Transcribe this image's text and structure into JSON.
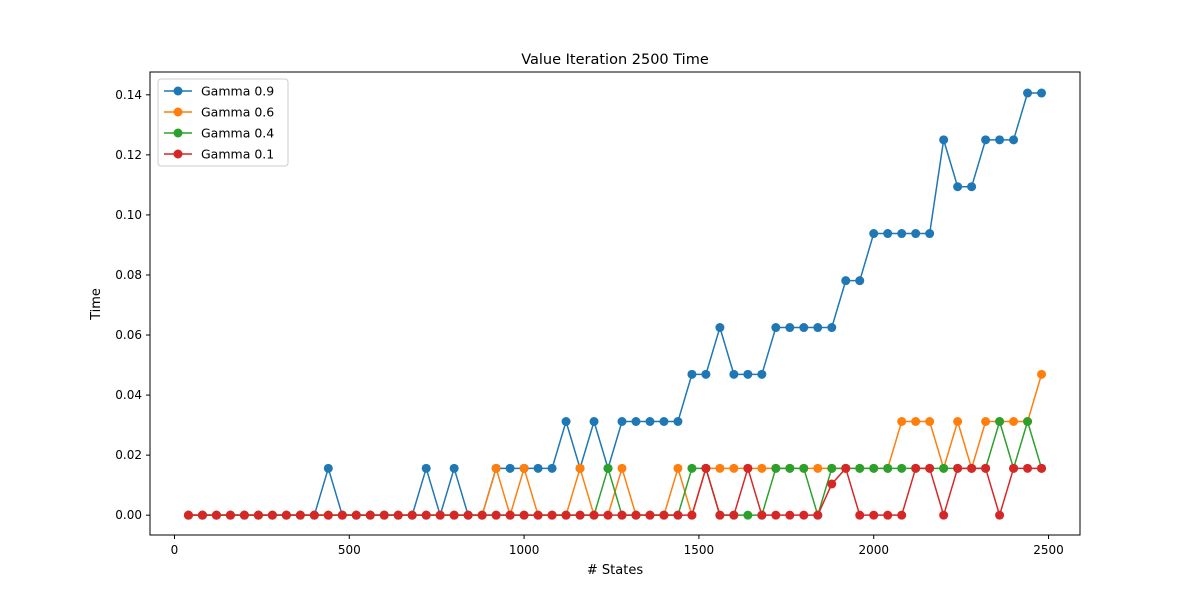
{
  "chart_data": {
    "type": "line",
    "title": "Value Iteration 2500  Time",
    "xlabel": "# States",
    "ylabel": "Time",
    "xlim": [
      -70,
      2590
    ],
    "ylim": [
      -0.0066,
      0.1476
    ],
    "x_ticks": [
      0,
      500,
      1000,
      1500,
      2000,
      2500
    ],
    "x_tick_labels": [
      "0",
      "500",
      "1000",
      "1500",
      "2000",
      "2500"
    ],
    "y_ticks": [
      0.0,
      0.02,
      0.04,
      0.06,
      0.08,
      0.1,
      0.12,
      0.14
    ],
    "y_tick_labels": [
      "0.00",
      "0.02",
      "0.04",
      "0.06",
      "0.08",
      "0.10",
      "0.12",
      "0.14"
    ],
    "grid": false,
    "legend_position": "upper-left",
    "x": [
      40,
      80,
      120,
      160,
      200,
      240,
      280,
      320,
      360,
      400,
      440,
      480,
      520,
      560,
      600,
      640,
      680,
      720,
      760,
      800,
      840,
      880,
      920,
      960,
      1000,
      1040,
      1080,
      1120,
      1160,
      1200,
      1240,
      1280,
      1320,
      1360,
      1400,
      1440,
      1480,
      1520,
      1560,
      1600,
      1640,
      1680,
      1720,
      1760,
      1800,
      1840,
      1880,
      1920,
      1960,
      2000,
      2040,
      2080,
      2120,
      2160,
      2200,
      2240,
      2280,
      2320,
      2360,
      2400,
      2440,
      2480
    ],
    "series": [
      {
        "name": "Gamma 0.9",
        "color": "#1f77b4",
        "values": [
          0,
          0,
          0,
          0,
          0,
          0,
          0,
          0,
          0,
          0,
          0.0156,
          0,
          0,
          0,
          0,
          0,
          0,
          0.0156,
          0,
          0.0156,
          0,
          0,
          0.0156,
          0.0156,
          0.0156,
          0.0156,
          0.0156,
          0.0312,
          0.0156,
          0.0312,
          0.0156,
          0.0312,
          0.0312,
          0.0312,
          0.0312,
          0.0312,
          0.0469,
          0.0469,
          0.0625,
          0.0469,
          0.0469,
          0.0469,
          0.0625,
          0.0625,
          0.0625,
          0.0625,
          0.0625,
          0.0781,
          0.0781,
          0.0938,
          0.0938,
          0.0938,
          0.0938,
          0.0938,
          0.125,
          0.1094,
          0.1094,
          0.125,
          0.125,
          0.125,
          0.1406,
          0.1406
        ]
      },
      {
        "name": "Gamma 0.6",
        "color": "#ff7f0e",
        "values": [
          0,
          0,
          0,
          0,
          0,
          0,
          0,
          0,
          0,
          0,
          0,
          0,
          0,
          0,
          0,
          0,
          0,
          0,
          0,
          0,
          0,
          0,
          0.0156,
          0,
          0.0156,
          0,
          0,
          0,
          0.0156,
          0,
          0,
          0.0156,
          0,
          0,
          0,
          0.0156,
          0,
          0.0156,
          0.0156,
          0.0156,
          0.0156,
          0.0156,
          0.0156,
          0.0156,
          0.0156,
          0.0156,
          0.0156,
          0.0156,
          0.0156,
          0.0156,
          0.0156,
          0.0312,
          0.0312,
          0.0312,
          0.0156,
          0.0312,
          0.0156,
          0.0312,
          0.0312,
          0.0312,
          0.0312,
          0.0469
        ]
      },
      {
        "name": "Gamma 0.4",
        "color": "#2ca02c",
        "values": [
          0,
          0,
          0,
          0,
          0,
          0,
          0,
          0,
          0,
          0,
          0,
          0,
          0,
          0,
          0,
          0,
          0,
          0,
          0,
          0,
          0,
          0,
          0,
          0,
          0,
          0,
          0,
          0,
          0,
          0,
          0.0156,
          0,
          0,
          0,
          0,
          0,
          0.0156,
          0.0156,
          0,
          0,
          0,
          0,
          0.0156,
          0.0156,
          0.0156,
          0,
          0.0156,
          0.0156,
          0.0156,
          0.0156,
          0.0156,
          0.0156,
          0.0156,
          0.0156,
          0.0156,
          0.0156,
          0.0156,
          0.0156,
          0.0312,
          0.0156,
          0.0312,
          0.0156
        ]
      },
      {
        "name": "Gamma 0.1",
        "color": "#d62728",
        "values": [
          0,
          0,
          0,
          0,
          0,
          0,
          0,
          0,
          0,
          0,
          0,
          0,
          0,
          0,
          0,
          0,
          0,
          0,
          0,
          0,
          0,
          0,
          0,
          0,
          0,
          0,
          0,
          0,
          0,
          0,
          0,
          0,
          0,
          0,
          0,
          0,
          0,
          0.0156,
          0,
          0,
          0.0156,
          0,
          0,
          0,
          0,
          0,
          0.0104,
          0.0156,
          0,
          0,
          0,
          0,
          0.0156,
          0.0156,
          0,
          0.0156,
          0.0156,
          0.0156,
          0,
          0.0156,
          0.0156,
          0.0156
        ]
      }
    ]
  }
}
